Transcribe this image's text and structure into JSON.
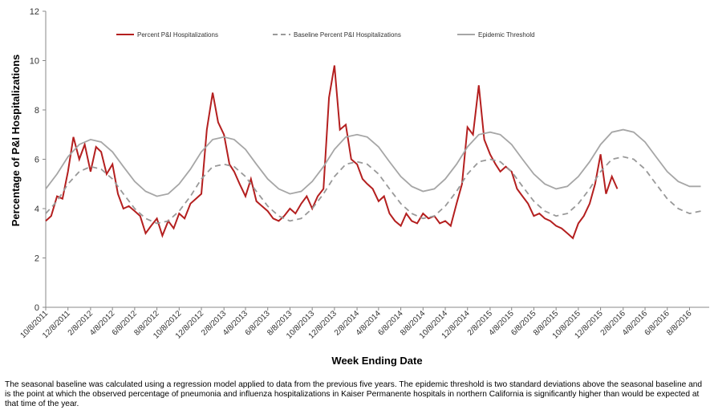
{
  "chart_data": {
    "type": "line",
    "xlabel": "Week Ending Date",
    "ylabel": "Percentage of P&I Hospitalizations",
    "xlim": [
      "10/8/2011",
      "10/1/2016"
    ],
    "ylim": [
      0,
      12
    ],
    "yticks": [
      0,
      2,
      4,
      6,
      8,
      10,
      12
    ],
    "xticks": [
      "10/8/2011",
      "12/8/2011",
      "2/8/2012",
      "4/8/2012",
      "6/8/2012",
      "8/8/2012",
      "10/8/2012",
      "12/8/2012",
      "2/8/2013",
      "4/8/2013",
      "6/8/2013",
      "8/8/2013",
      "10/8/2013",
      "12/8/2013",
      "2/8/2014",
      "4/8/2014",
      "6/8/2014",
      "8/8/2014",
      "10/8/2014",
      "12/8/2014",
      "2/8/2015",
      "4/8/2015",
      "6/8/2015",
      "8/8/2015",
      "10/8/2015",
      "12/8/2015",
      "2/8/2016",
      "4/8/2016",
      "6/8/2016",
      "8/8/2016"
    ],
    "grid": false,
    "legend": "top",
    "series": [
      {
        "name": "Percent P&I Hospitalizations",
        "color": "#b41f1f",
        "style": "solid",
        "x": [
          "10/8/2011",
          "10/23/2011",
          "11/8/2011",
          "11/23/2011",
          "12/8/2011",
          "12/23/2011",
          "1/8/2012",
          "1/23/2012",
          "2/8/2012",
          "2/23/2012",
          "3/8/2012",
          "3/23/2012",
          "4/8/2012",
          "4/23/2012",
          "5/8/2012",
          "5/23/2012",
          "6/8/2012",
          "6/23/2012",
          "7/8/2012",
          "7/23/2012",
          "8/8/2012",
          "8/23/2012",
          "9/8/2012",
          "9/23/2012",
          "10/8/2012",
          "10/23/2012",
          "11/8/2012",
          "11/23/2012",
          "12/8/2012",
          "12/23/2012",
          "1/8/2013",
          "1/23/2013",
          "2/8/2013",
          "2/23/2013",
          "3/8/2013",
          "3/23/2013",
          "4/8/2013",
          "4/23/2013",
          "5/8/2013",
          "5/23/2013",
          "6/8/2013",
          "6/23/2013",
          "7/8/2013",
          "7/23/2013",
          "8/8/2013",
          "8/23/2013",
          "9/8/2013",
          "9/23/2013",
          "10/8/2013",
          "10/23/2013",
          "11/8/2013",
          "11/23/2013",
          "12/8/2013",
          "12/23/2013",
          "1/8/2014",
          "1/23/2014",
          "2/8/2014",
          "2/23/2014",
          "3/8/2014",
          "3/23/2014",
          "4/8/2014",
          "4/23/2014",
          "5/8/2014",
          "5/23/2014",
          "6/8/2014",
          "6/23/2014",
          "7/8/2014",
          "7/23/2014",
          "8/8/2014",
          "8/23/2014",
          "9/8/2014",
          "9/23/2014",
          "10/8/2014",
          "10/23/2014",
          "11/8/2014",
          "11/23/2014",
          "12/8/2014",
          "12/23/2014",
          "1/8/2015",
          "1/23/2015",
          "2/8/2015",
          "2/23/2015",
          "3/8/2015",
          "3/23/2015",
          "4/8/2015",
          "4/23/2015",
          "5/8/2015",
          "5/23/2015",
          "6/8/2015",
          "6/23/2015",
          "7/8/2015",
          "7/23/2015",
          "8/8/2015",
          "8/23/2015",
          "9/8/2015",
          "9/23/2015",
          "10/8/2015",
          "10/23/2015",
          "11/8/2015",
          "11/23/2015",
          "12/8/2015",
          "12/23/2015",
          "1/8/2016",
          "1/23/2016"
        ],
        "values": [
          3.5,
          3.7,
          4.5,
          4.4,
          5.5,
          6.9,
          6.0,
          6.6,
          5.5,
          6.5,
          6.3,
          5.4,
          5.8,
          4.6,
          4.0,
          4.1,
          3.9,
          3.7,
          3.0,
          3.3,
          3.6,
          2.9,
          3.5,
          3.2,
          3.8,
          3.6,
          4.2,
          4.4,
          4.6,
          7.2,
          8.7,
          7.5,
          7.0,
          5.8,
          5.5,
          5.0,
          4.5,
          5.2,
          4.3,
          4.1,
          3.9,
          3.6,
          3.5,
          3.7,
          4.0,
          3.8,
          4.2,
          4.5,
          4.0,
          4.5,
          4.8,
          8.5,
          9.8,
          7.2,
          7.4,
          6.0,
          5.8,
          5.2,
          5.0,
          4.8,
          4.3,
          4.5,
          3.8,
          3.5,
          3.3,
          3.8,
          3.5,
          3.4,
          3.8,
          3.6,
          3.7,
          3.4,
          3.5,
          3.3,
          4.2,
          5.0,
          7.3,
          7.0,
          9.0,
          6.8,
          6.2,
          5.8,
          5.5,
          5.7,
          5.5,
          4.8,
          4.5,
          4.2,
          3.7,
          3.8,
          3.6,
          3.5,
          3.3,
          3.2,
          3.0,
          2.8,
          3.4,
          3.7,
          4.2,
          5.0,
          6.2,
          4.6,
          5.3,
          4.8
        ]
      },
      {
        "name": "Baseline Percent P&I Hospitalizations",
        "color": "#999999",
        "style": "dashed",
        "x": [
          "10/8/2011",
          "11/8/2011",
          "12/8/2011",
          "1/8/2012",
          "2/8/2012",
          "3/8/2012",
          "4/8/2012",
          "5/8/2012",
          "6/8/2012",
          "7/8/2012",
          "8/8/2012",
          "9/8/2012",
          "10/8/2012",
          "11/8/2012",
          "12/8/2012",
          "1/8/2013",
          "2/8/2013",
          "3/8/2013",
          "4/8/2013",
          "5/8/2013",
          "6/8/2013",
          "7/8/2013",
          "8/8/2013",
          "9/8/2013",
          "10/8/2013",
          "11/8/2013",
          "12/8/2013",
          "1/8/2014",
          "2/8/2014",
          "3/8/2014",
          "4/8/2014",
          "5/8/2014",
          "6/8/2014",
          "7/8/2014",
          "8/8/2014",
          "9/8/2014",
          "10/8/2014",
          "11/8/2014",
          "12/8/2014",
          "1/8/2015",
          "2/8/2015",
          "3/8/2015",
          "4/8/2015",
          "5/8/2015",
          "6/8/2015",
          "7/8/2015",
          "8/8/2015",
          "9/8/2015",
          "10/8/2015",
          "11/8/2015",
          "12/8/2015",
          "1/8/2016",
          "2/8/2016",
          "3/8/2016",
          "4/8/2016",
          "5/8/2016",
          "6/8/2016",
          "7/8/2016",
          "8/8/2016",
          "9/8/2016"
        ],
        "values": [
          3.8,
          4.3,
          5.0,
          5.5,
          5.7,
          5.6,
          5.2,
          4.6,
          4.0,
          3.6,
          3.4,
          3.5,
          3.9,
          4.5,
          5.2,
          5.7,
          5.8,
          5.7,
          5.3,
          4.7,
          4.1,
          3.7,
          3.5,
          3.6,
          4.0,
          4.6,
          5.3,
          5.8,
          5.9,
          5.8,
          5.4,
          4.8,
          4.2,
          3.8,
          3.6,
          3.7,
          4.1,
          4.7,
          5.4,
          5.9,
          6.0,
          5.9,
          5.5,
          4.9,
          4.3,
          3.9,
          3.7,
          3.8,
          4.2,
          4.8,
          5.5,
          6.0,
          6.1,
          6.0,
          5.6,
          5.0,
          4.4,
          4.0,
          3.8,
          3.9
        ]
      },
      {
        "name": "Epidemic Threshold",
        "color": "#a6a6a6",
        "style": "solid",
        "x": [
          "10/8/2011",
          "11/8/2011",
          "12/8/2011",
          "1/8/2012",
          "2/8/2012",
          "3/8/2012",
          "4/8/2012",
          "5/8/2012",
          "6/8/2012",
          "7/8/2012",
          "8/8/2012",
          "9/8/2012",
          "10/8/2012",
          "11/8/2012",
          "12/8/2012",
          "1/8/2013",
          "2/8/2013",
          "3/8/2013",
          "4/8/2013",
          "5/8/2013",
          "6/8/2013",
          "7/8/2013",
          "8/8/2013",
          "9/8/2013",
          "10/8/2013",
          "11/8/2013",
          "12/8/2013",
          "1/8/2014",
          "2/8/2014",
          "3/8/2014",
          "4/8/2014",
          "5/8/2014",
          "6/8/2014",
          "7/8/2014",
          "8/8/2014",
          "9/8/2014",
          "10/8/2014",
          "11/8/2014",
          "12/8/2014",
          "1/8/2015",
          "2/8/2015",
          "3/8/2015",
          "4/8/2015",
          "5/8/2015",
          "6/8/2015",
          "7/8/2015",
          "8/8/2015",
          "9/8/2015",
          "10/8/2015",
          "11/8/2015",
          "12/8/2015",
          "1/8/2016",
          "2/8/2016",
          "3/8/2016",
          "4/8/2016",
          "5/8/2016",
          "6/8/2016",
          "7/8/2016",
          "8/8/2016",
          "9/8/2016"
        ],
        "values": [
          4.8,
          5.4,
          6.1,
          6.6,
          6.8,
          6.7,
          6.3,
          5.7,
          5.1,
          4.7,
          4.5,
          4.6,
          5.0,
          5.6,
          6.3,
          6.8,
          6.9,
          6.8,
          6.4,
          5.8,
          5.2,
          4.8,
          4.6,
          4.7,
          5.1,
          5.7,
          6.4,
          6.9,
          7.0,
          6.9,
          6.5,
          5.9,
          5.3,
          4.9,
          4.7,
          4.8,
          5.2,
          5.8,
          6.5,
          7.0,
          7.1,
          7.0,
          6.6,
          6.0,
          5.4,
          5.0,
          4.8,
          4.9,
          5.3,
          5.9,
          6.6,
          7.1,
          7.2,
          7.1,
          6.7,
          6.1,
          5.5,
          5.1,
          4.9,
          4.9
        ]
      }
    ],
    "note": "The seasonal baseline was calculated using a regression model applied to data from the previous five years.  The epidemic threshold is two standard deviations above the seasonal baseline and is the point at which the observed percentage of pneumonia and influenza hospitalizations in Kaiser Permanente hospitals in northern California is significantly higher than would be expected at that time of the year."
  }
}
